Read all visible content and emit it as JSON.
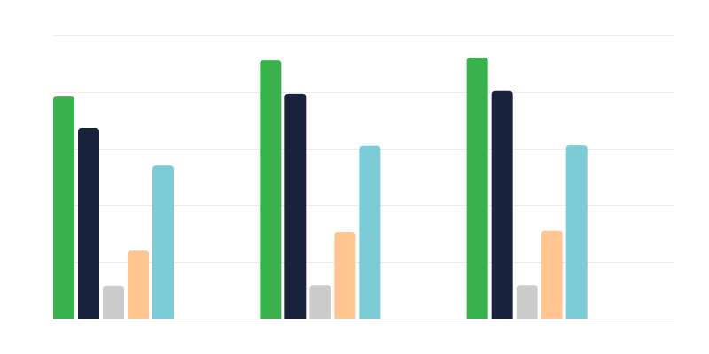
{
  "chart_data": {
    "type": "bar",
    "title": "",
    "xlabel": "",
    "ylabel": "",
    "categories": [
      "",
      "",
      ""
    ],
    "ylim": [
      0,
      5
    ],
    "grid": true,
    "legend": "none",
    "series": [
      {
        "color": "#39b14d",
        "values": [
          3.92,
          4.56,
          4.61
        ]
      },
      {
        "color": "#19223c",
        "values": [
          3.36,
          3.97,
          4.02
        ]
      },
      {
        "color": "#cccccc",
        "values": [
          0.58,
          0.59,
          0.59
        ]
      },
      {
        "color": "#ffc490",
        "values": [
          1.2,
          1.53,
          1.55
        ]
      },
      {
        "color": "#7bccd6",
        "values": [
          2.7,
          3.05,
          3.06
        ]
      }
    ]
  }
}
